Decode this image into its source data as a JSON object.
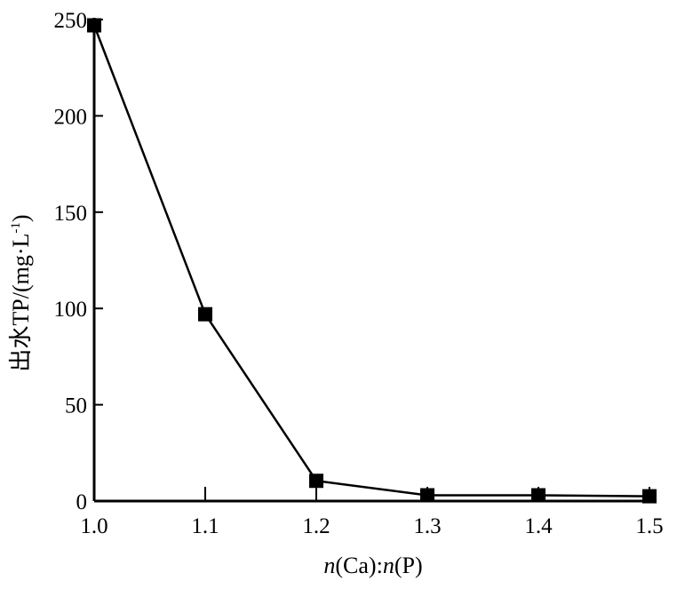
{
  "chart_data": {
    "type": "line",
    "title": "",
    "xlabel_parts": [
      "n",
      "(Ca)",
      ":",
      "n",
      "(P)"
    ],
    "ylabel_main": "出水TP/(mg·L",
    "ylabel_sup": "-1",
    "ylabel_end": ")",
    "x": [
      1.0,
      1.1,
      1.2,
      1.3,
      1.4,
      1.5
    ],
    "y": [
      247,
      97,
      10.5,
      3,
      3,
      2.5
    ],
    "xlim": [
      1.0,
      1.5
    ],
    "ylim": [
      0,
      250
    ],
    "xticks": [
      "1.0",
      "1.1",
      "1.2",
      "1.3",
      "1.4",
      "1.5"
    ],
    "yticks": [
      "0",
      "50",
      "100",
      "150",
      "200",
      "250"
    ],
    "marker": "square",
    "grid": false,
    "color": "#000000"
  }
}
